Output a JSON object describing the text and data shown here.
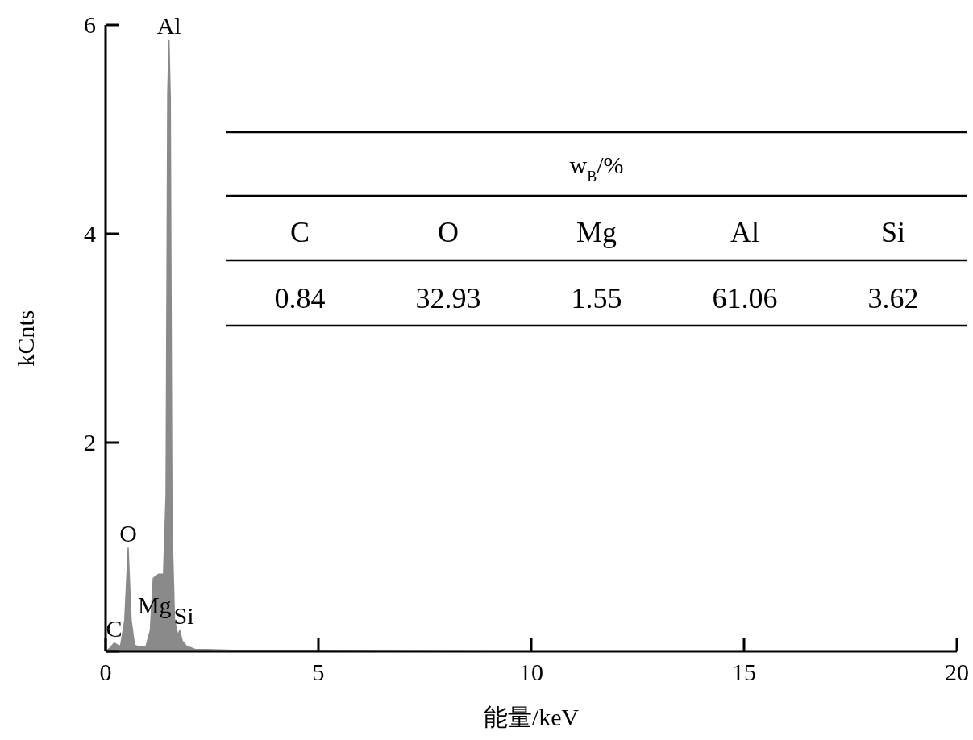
{
  "chart_data": {
    "type": "area",
    "xlabel": "能量/keV",
    "ylabel": "kCnts",
    "x": [
      0,
      0.1,
      0.2,
      0.28,
      0.35,
      0.45,
      0.53,
      0.6,
      0.68,
      0.8,
      0.95,
      1.05,
      1.12,
      1.25,
      1.36,
      1.42,
      1.46,
      1.49,
      1.52,
      1.56,
      1.62,
      1.7,
      1.74,
      1.8,
      1.9,
      2.1,
      3,
      5,
      10,
      20
    ],
    "series": [
      {
        "color": "#8a8a8a",
        "values": [
          0,
          0.03,
          0.08,
          0.06,
          0.05,
          0.3,
          0.99,
          0.3,
          0.06,
          0.04,
          0.05,
          0.2,
          0.7,
          0.74,
          0.74,
          1.5,
          5.35,
          5.85,
          5.3,
          1.2,
          0.3,
          0.15,
          0.2,
          0.1,
          0.05,
          0.02,
          0.01,
          0.01,
          0,
          0
        ]
      }
    ],
    "xlim": [
      0,
      20
    ],
    "xticks": [
      0,
      5,
      10,
      15,
      20
    ],
    "ylim": [
      0,
      6
    ],
    "yticks": [
      {
        "value": 0,
        "label": null
      },
      2,
      4,
      6
    ],
    "annotations": [
      "w$_{B}$/%",
      "C",
      "O",
      "Mg",
      "Al",
      "Si",
      "0.84",
      "32.93",
      "1.55",
      "61.06",
      "3.62",
      {
        "text": "C",
        "x": 0.2,
        "y": 0.08
      },
      {
        "text": "O",
        "x": 0.53,
        "y": 0.99
      },
      {
        "text": "Mg",
        "x": 1.15,
        "y": 0.3
      },
      {
        "text": "Si",
        "x": 1.74,
        "y": 0.2
      },
      {
        "text": "Al",
        "x": 1.49,
        "y": 5.85
      }
    ]
  }
}
